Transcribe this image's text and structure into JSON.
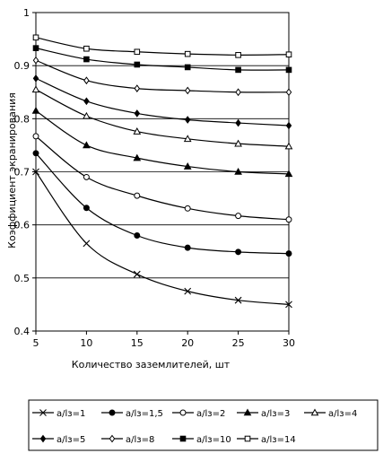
{
  "chart_data": {
    "type": "line",
    "title": "",
    "xlabel": "Количество заземлителей, шт",
    "ylabel": "Коэффициент экранирования",
    "xlim": [
      5,
      30
    ],
    "ylim": [
      0.4,
      1
    ],
    "x_ticks": [
      "5",
      "10",
      "15",
      "20",
      "25",
      "30"
    ],
    "y_ticks": [
      "0.4",
      "0.5",
      "0.6",
      "0.7",
      "0.8",
      "0.9",
      "1"
    ],
    "grid": "horizontal",
    "legend_position": "bottom",
    "x": [
      5,
      10,
      15,
      20,
      25,
      30
    ],
    "series": [
      {
        "name": "a/lз=1",
        "marker": "x",
        "values": [
          0.7,
          0.565,
          0.507,
          0.475,
          0.458,
          0.45
        ]
      },
      {
        "name": "a/lз=1,5",
        "marker": "filled-circle",
        "values": [
          0.735,
          0.632,
          0.58,
          0.557,
          0.549,
          0.546
        ]
      },
      {
        "name": "a/lз=2",
        "marker": "open-circle",
        "values": [
          0.767,
          0.69,
          0.655,
          0.631,
          0.617,
          0.61
        ]
      },
      {
        "name": "a/lз=3",
        "marker": "filled-triangle",
        "values": [
          0.815,
          0.75,
          0.726,
          0.71,
          0.7,
          0.696
        ]
      },
      {
        "name": "a/lз=4",
        "marker": "open-triangle",
        "values": [
          0.855,
          0.805,
          0.776,
          0.762,
          0.753,
          0.748
        ]
      },
      {
        "name": "a/lз=5",
        "marker": "filled-diamond",
        "values": [
          0.876,
          0.833,
          0.81,
          0.798,
          0.792,
          0.787
        ]
      },
      {
        "name": "a/lз=8",
        "marker": "open-diamond",
        "values": [
          0.91,
          0.872,
          0.857,
          0.853,
          0.85,
          0.85
        ]
      },
      {
        "name": "a/lз=10",
        "marker": "filled-square",
        "values": [
          0.933,
          0.912,
          0.902,
          0.897,
          0.892,
          0.892
        ]
      },
      {
        "name": "a/lз=14",
        "marker": "open-square",
        "values": [
          0.953,
          0.932,
          0.926,
          0.922,
          0.92,
          0.921
        ]
      }
    ]
  }
}
